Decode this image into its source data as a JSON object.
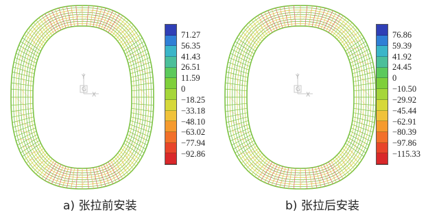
{
  "panels": [
    {
      "caption": "a)  张拉前安装",
      "legend": {
        "values": [
          "71.27",
          "56.35",
          "41.43",
          "26.51",
          "11.59",
          "0",
          "−18.25",
          "−33.18",
          "−48.10",
          "−63.02",
          "−77.94",
          "−92.86"
        ]
      }
    },
    {
      "caption": "b)  张拉后安装",
      "legend": {
        "values": [
          "76.86",
          "59.39",
          "41.92",
          "24.45",
          "0",
          "−10.50",
          "−29.92",
          "−45.44",
          "−62.91",
          "−80.39",
          "−97.86",
          "−115.33"
        ]
      }
    }
  ],
  "axis_triad": {
    "y_label": "Y",
    "center_label": "G",
    "x_label": "X"
  },
  "colors": {
    "legend_swatches": [
      "#2f3fb6",
      "#2f7fd6",
      "#3ab5c8",
      "#4bbf9a",
      "#5cc95c",
      "#7fcf3b",
      "#a6d63a",
      "#d6d83a",
      "#f0c23a",
      "#f59a2e",
      "#f2702a",
      "#e8452a",
      "#d9282a"
    ],
    "mesh_green": "#7cc242",
    "mesh_yellow": "#cfd84a",
    "mesh_orange": "#f0a060",
    "mesh_red": "#e06060"
  }
}
